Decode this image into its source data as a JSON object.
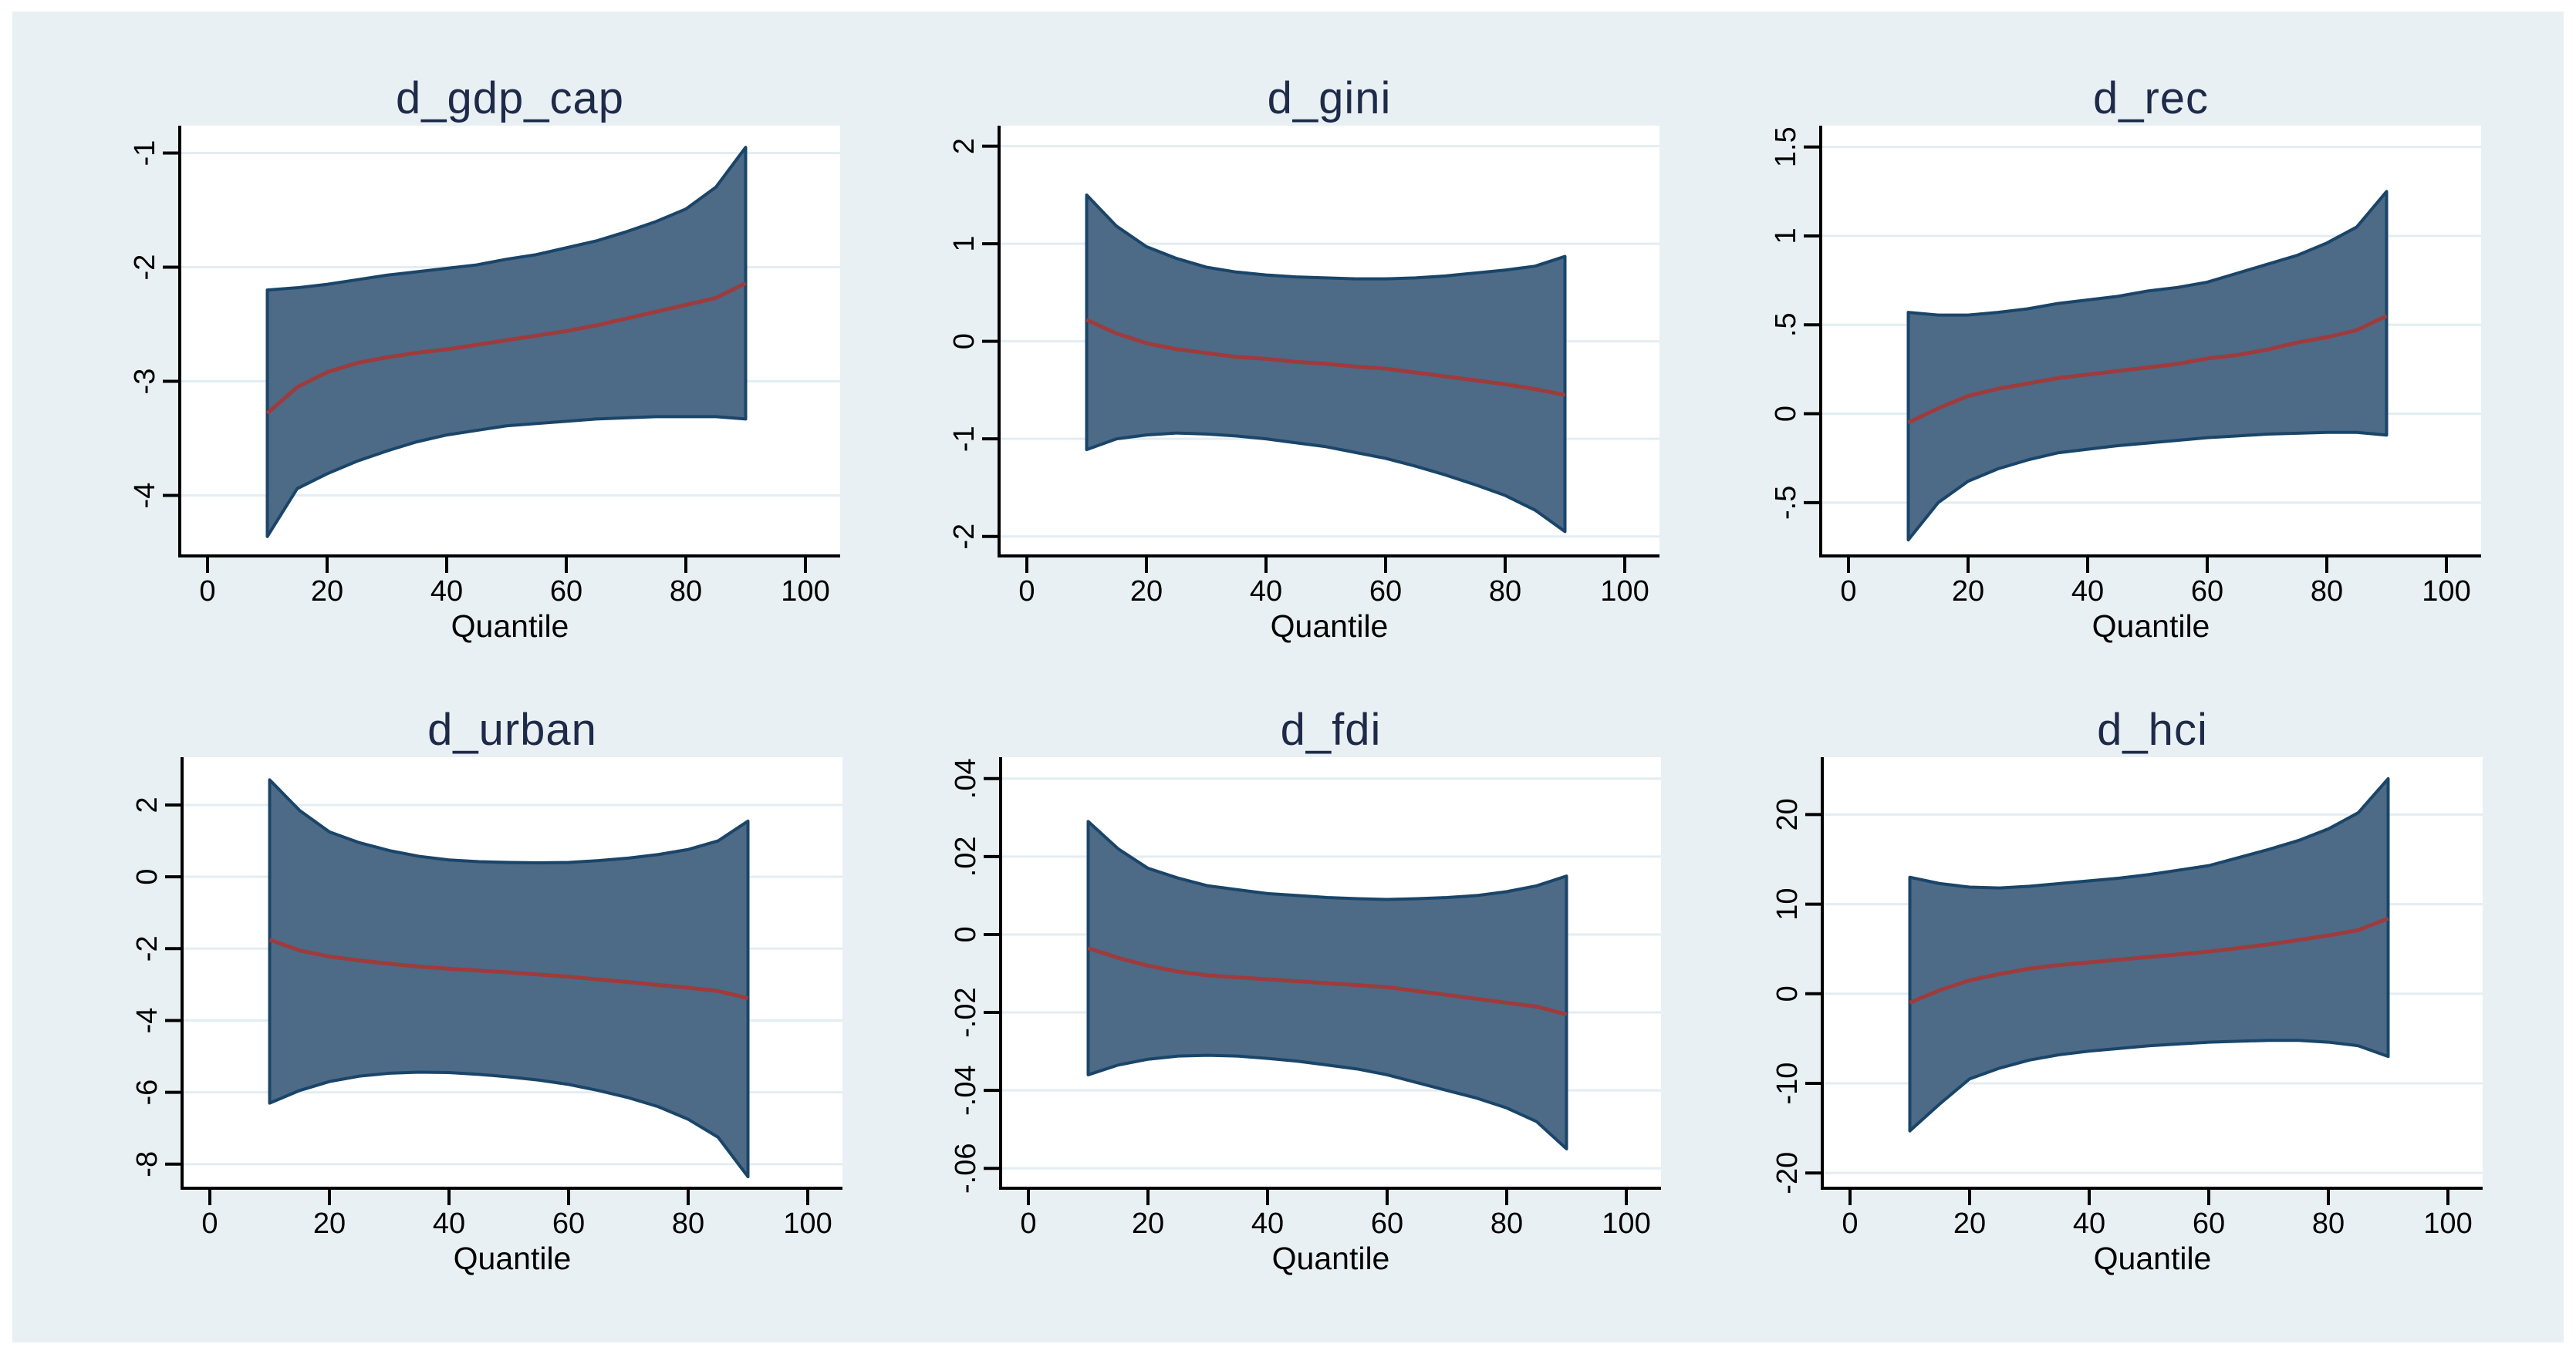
{
  "figure": {
    "page_background": "#FFFFFF",
    "background": "#E9F0F3",
    "plot_background": "#FFFFFF",
    "grid_color": "#E3EDF2",
    "axis_color": "#000000",
    "band_fill": "#4D6A87",
    "band_stroke": "#1A4569",
    "coef_line_color": "#9E3B3C",
    "title_color": "#1E2A49",
    "tick_label_color": "#000000",
    "xlabel": "Quantile",
    "xticks": [
      0,
      20,
      40,
      60,
      80,
      100
    ],
    "xtick_labels": [
      "0",
      "20",
      "40",
      "60",
      "80",
      "100"
    ]
  },
  "chart_data": [
    {
      "type": "area",
      "title": "d_gdp_cap",
      "xlabel": "Quantile",
      "legend": "none",
      "grid": true,
      "xlim": [
        -5,
        106
      ],
      "xticks": [
        0,
        20,
        40,
        60,
        80,
        100
      ],
      "xtick_labels": [
        "0",
        "20",
        "40",
        "60",
        "80",
        "100"
      ],
      "ylim": [
        -4.53,
        -0.76
      ],
      "yticks": [
        -1,
        -2,
        -3,
        -4
      ],
      "ytick_labels": [
        "-1",
        "-2",
        "-3",
        "-4"
      ],
      "x": [
        10,
        15,
        20,
        25,
        30,
        35,
        40,
        45,
        50,
        55,
        60,
        65,
        70,
        75,
        80,
        85,
        90
      ],
      "series": [
        {
          "name": "coefficient",
          "values": [
            -3.28,
            -3.05,
            -2.92,
            -2.84,
            -2.79,
            -2.75,
            -2.72,
            -2.68,
            -2.64,
            -2.6,
            -2.56,
            -2.51,
            -2.45,
            -2.39,
            -2.33,
            -2.27,
            -2.14
          ]
        },
        {
          "name": "ci_upper",
          "values": [
            -2.2,
            -2.18,
            -2.15,
            -2.11,
            -2.07,
            -2.04,
            -2.01,
            -1.98,
            -1.93,
            -1.89,
            -1.83,
            -1.77,
            -1.69,
            -1.6,
            -1.49,
            -1.3,
            -0.95
          ]
        },
        {
          "name": "ci_lower",
          "values": [
            -4.36,
            -3.94,
            -3.81,
            -3.7,
            -3.61,
            -3.53,
            -3.47,
            -3.43,
            -3.39,
            -3.37,
            -3.35,
            -3.33,
            -3.32,
            -3.31,
            -3.31,
            -3.31,
            -3.33
          ]
        }
      ]
    },
    {
      "type": "area",
      "title": "d_gini",
      "xlabel": "Quantile",
      "legend": "none",
      "grid": true,
      "xlim": [
        -5,
        106
      ],
      "xticks": [
        0,
        20,
        40,
        60,
        80,
        100
      ],
      "xtick_labels": [
        "0",
        "20",
        "40",
        "60",
        "80",
        "100"
      ],
      "ylim": [
        -2.2,
        2.21
      ],
      "yticks": [
        2,
        1,
        0,
        -1,
        -2
      ],
      "ytick_labels": [
        "2",
        "1",
        "0",
        "-1",
        "-2"
      ],
      "x": [
        10,
        15,
        20,
        25,
        30,
        35,
        40,
        45,
        50,
        55,
        60,
        65,
        70,
        75,
        80,
        85,
        90
      ],
      "series": [
        {
          "name": "coefficient",
          "values": [
            0.22,
            0.08,
            -0.02,
            -0.08,
            -0.12,
            -0.16,
            -0.18,
            -0.21,
            -0.23,
            -0.26,
            -0.28,
            -0.32,
            -0.36,
            -0.4,
            -0.44,
            -0.49,
            -0.55
          ]
        },
        {
          "name": "ci_upper",
          "values": [
            1.5,
            1.18,
            0.97,
            0.85,
            0.76,
            0.71,
            0.68,
            0.66,
            0.65,
            0.64,
            0.64,
            0.65,
            0.67,
            0.7,
            0.73,
            0.77,
            0.87
          ]
        },
        {
          "name": "ci_lower",
          "values": [
            -1.11,
            -1.0,
            -0.96,
            -0.94,
            -0.95,
            -0.97,
            -1.0,
            -1.04,
            -1.08,
            -1.14,
            -1.2,
            -1.28,
            -1.37,
            -1.47,
            -1.58,
            -1.73,
            -1.95
          ]
        }
      ]
    },
    {
      "type": "area",
      "title": "d_rec",
      "xlabel": "Quantile",
      "legend": "none",
      "grid": true,
      "xlim": [
        -5,
        106
      ],
      "xticks": [
        0,
        20,
        40,
        60,
        80,
        100
      ],
      "xtick_labels": [
        "0",
        "20",
        "40",
        "60",
        "80",
        "100"
      ],
      "ylim": [
        -0.8,
        1.62
      ],
      "yticks": [
        1.5,
        1,
        0.5,
        0,
        -0.5
      ],
      "ytick_labels": [
        "1.5",
        "1",
        ".5",
        "0",
        "-.5"
      ],
      "x": [
        10,
        15,
        20,
        25,
        30,
        35,
        40,
        45,
        50,
        55,
        60,
        65,
        70,
        75,
        80,
        85,
        90
      ],
      "series": [
        {
          "name": "coefficient",
          "values": [
            -0.05,
            0.03,
            0.1,
            0.14,
            0.17,
            0.2,
            0.22,
            0.24,
            0.26,
            0.28,
            0.31,
            0.33,
            0.36,
            0.4,
            0.43,
            0.47,
            0.55
          ]
        },
        {
          "name": "ci_upper",
          "values": [
            0.57,
            0.555,
            0.555,
            0.57,
            0.59,
            0.62,
            0.64,
            0.66,
            0.69,
            0.71,
            0.74,
            0.79,
            0.84,
            0.89,
            0.96,
            1.05,
            1.25
          ]
        },
        {
          "name": "ci_lower",
          "values": [
            -0.71,
            -0.5,
            -0.38,
            -0.31,
            -0.26,
            -0.22,
            -0.2,
            -0.18,
            -0.165,
            -0.15,
            -0.135,
            -0.125,
            -0.115,
            -0.11,
            -0.105,
            -0.105,
            -0.12
          ]
        }
      ]
    },
    {
      "type": "area",
      "title": "d_urban",
      "xlabel": "Quantile",
      "legend": "none",
      "grid": true,
      "xlim": [
        -5,
        106
      ],
      "xticks": [
        0,
        20,
        40,
        60,
        80,
        100
      ],
      "xtick_labels": [
        "0",
        "20",
        "40",
        "60",
        "80",
        "100"
      ],
      "ylim": [
        -8.67,
        3.33
      ],
      "yticks": [
        2,
        0,
        -2,
        -4,
        -6,
        -8
      ],
      "ytick_labels": [
        "2",
        "0",
        "-2",
        "-4",
        "-6",
        "-8"
      ],
      "x": [
        10,
        15,
        20,
        25,
        30,
        35,
        40,
        45,
        50,
        55,
        60,
        65,
        70,
        75,
        80,
        85,
        90
      ],
      "series": [
        {
          "name": "coefficient",
          "values": [
            -1.75,
            -2.05,
            -2.22,
            -2.33,
            -2.42,
            -2.5,
            -2.56,
            -2.61,
            -2.66,
            -2.72,
            -2.78,
            -2.86,
            -2.93,
            -3.01,
            -3.09,
            -3.18,
            -3.38
          ]
        },
        {
          "name": "ci_upper",
          "values": [
            2.7,
            1.85,
            1.25,
            0.95,
            0.73,
            0.57,
            0.47,
            0.42,
            0.4,
            0.39,
            0.4,
            0.45,
            0.52,
            0.62,
            0.76,
            1.0,
            1.55
          ]
        },
        {
          "name": "ci_lower",
          "values": [
            -6.3,
            -5.95,
            -5.7,
            -5.55,
            -5.47,
            -5.44,
            -5.45,
            -5.5,
            -5.57,
            -5.66,
            -5.78,
            -5.95,
            -6.15,
            -6.4,
            -6.75,
            -7.25,
            -8.35
          ]
        }
      ]
    },
    {
      "type": "area",
      "title": "d_fdi",
      "xlabel": "Quantile",
      "legend": "none",
      "grid": true,
      "xlim": [
        -5,
        106
      ],
      "xticks": [
        0,
        20,
        40,
        60,
        80,
        100
      ],
      "xtick_labels": [
        "0",
        "20",
        "40",
        "60",
        "80",
        "100"
      ],
      "ylim": [
        -0.0651,
        0.0455
      ],
      "yticks": [
        0.04,
        0.02,
        0,
        -0.02,
        -0.04,
        -0.06
      ],
      "ytick_labels": [
        ".04",
        ".02",
        "0",
        "-.02",
        "-.04",
        "-.06"
      ],
      "x": [
        10,
        15,
        20,
        25,
        30,
        35,
        40,
        45,
        50,
        55,
        60,
        65,
        70,
        75,
        80,
        85,
        90
      ],
      "series": [
        {
          "name": "coefficient",
          "values": [
            -0.0035,
            -0.006,
            -0.008,
            -0.0095,
            -0.0105,
            -0.011,
            -0.0115,
            -0.012,
            -0.0125,
            -0.013,
            -0.0135,
            -0.0145,
            -0.0155,
            -0.0165,
            -0.0175,
            -0.0185,
            -0.0205
          ]
        },
        {
          "name": "ci_upper",
          "values": [
            0.029,
            0.022,
            0.017,
            0.0145,
            0.0125,
            0.0115,
            0.0105,
            0.01,
            0.0095,
            0.0092,
            0.009,
            0.0092,
            0.0095,
            0.01,
            0.011,
            0.0125,
            0.015
          ]
        },
        {
          "name": "ci_lower",
          "values": [
            -0.036,
            -0.0335,
            -0.032,
            -0.0312,
            -0.031,
            -0.0312,
            -0.0318,
            -0.0325,
            -0.0335,
            -0.0345,
            -0.036,
            -0.038,
            -0.04,
            -0.042,
            -0.0445,
            -0.048,
            -0.055
          ]
        }
      ]
    },
    {
      "type": "area",
      "title": "d_hci",
      "xlabel": "Quantile",
      "legend": "none",
      "grid": true,
      "xlim": [
        -5,
        106
      ],
      "xticks": [
        0,
        20,
        40,
        60,
        80,
        100
      ],
      "xtick_labels": [
        "0",
        "20",
        "40",
        "60",
        "80",
        "100"
      ],
      "ylim": [
        -21.7,
        26.4
      ],
      "yticks": [
        20,
        10,
        0,
        -10,
        -20
      ],
      "ytick_labels": [
        "20",
        "10",
        "0",
        "-10",
        "-20"
      ],
      "x": [
        10,
        15,
        20,
        25,
        30,
        35,
        40,
        45,
        50,
        55,
        60,
        65,
        70,
        75,
        80,
        85,
        90
      ],
      "series": [
        {
          "name": "coefficient",
          "values": [
            -1.0,
            0.4,
            1.5,
            2.2,
            2.8,
            3.2,
            3.5,
            3.8,
            4.1,
            4.4,
            4.7,
            5.1,
            5.5,
            6.0,
            6.5,
            7.1,
            8.4
          ]
        },
        {
          "name": "ci_upper",
          "values": [
            13.0,
            12.3,
            11.9,
            11.8,
            12.0,
            12.3,
            12.6,
            12.9,
            13.3,
            13.8,
            14.3,
            15.2,
            16.1,
            17.1,
            18.4,
            20.2,
            24.0
          ]
        },
        {
          "name": "ci_lower",
          "values": [
            -15.3,
            -12.3,
            -9.5,
            -8.3,
            -7.4,
            -6.8,
            -6.4,
            -6.1,
            -5.8,
            -5.6,
            -5.4,
            -5.3,
            -5.2,
            -5.2,
            -5.4,
            -5.8,
            -7.0
          ]
        }
      ]
    }
  ]
}
